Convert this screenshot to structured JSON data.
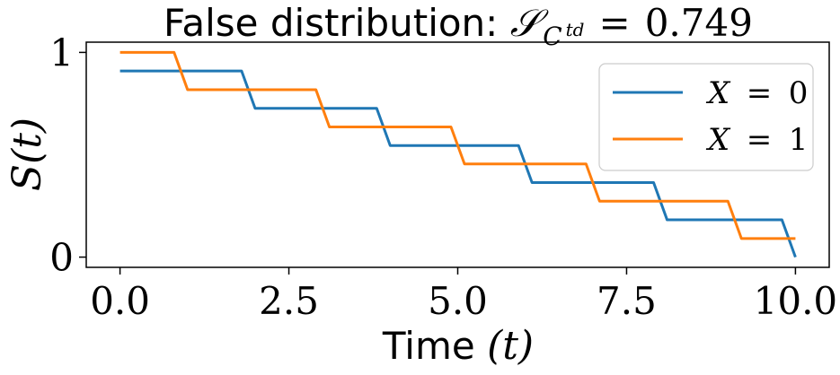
{
  "chart_data": {
    "type": "line",
    "title": {
      "prefix": "False distribution: ",
      "symbol": "𝒮",
      "subscript_base": "C",
      "subscript_sup": "td",
      "equals": "=",
      "value": "0.749"
    },
    "xlabel": {
      "text": "Time ",
      "math": "(t)"
    },
    "ylabel": {
      "text": "S(t)"
    },
    "xlim": [
      -0.5,
      10.5
    ],
    "ylim": [
      -0.05,
      1.05
    ],
    "xticks": [
      0.0,
      2.5,
      5.0,
      7.5,
      10.0
    ],
    "xtick_labels": [
      "0.0",
      "2.5",
      "5.0",
      "7.5",
      "10.0"
    ],
    "yticks": [
      0,
      1
    ],
    "ytick_labels": [
      "0",
      "1"
    ],
    "grid": false,
    "legend": "top-right",
    "series": [
      {
        "name": "X = 0",
        "color": "#1f77b4",
        "x": [
          0,
          1.8,
          2.0,
          3.8,
          4.0,
          5.9,
          6.1,
          7.9,
          8.1,
          9.8,
          10.0
        ],
        "y": [
          0.909,
          0.909,
          0.727,
          0.727,
          0.545,
          0.545,
          0.364,
          0.364,
          0.182,
          0.182,
          0.0
        ]
      },
      {
        "name": "X = 1",
        "color": "#ff7f0e",
        "x": [
          0,
          0.8,
          1.0,
          2.9,
          3.1,
          4.9,
          5.1,
          6.9,
          7.1,
          9.0,
          9.2,
          10.0
        ],
        "y": [
          1.0,
          1.0,
          0.818,
          0.818,
          0.636,
          0.636,
          0.455,
          0.455,
          0.273,
          0.273,
          0.091,
          0.091
        ]
      }
    ],
    "legend_entries": [
      {
        "var": "X",
        "eq": "=",
        "num": "0"
      },
      {
        "var": "X",
        "eq": "=",
        "num": "1"
      }
    ]
  }
}
